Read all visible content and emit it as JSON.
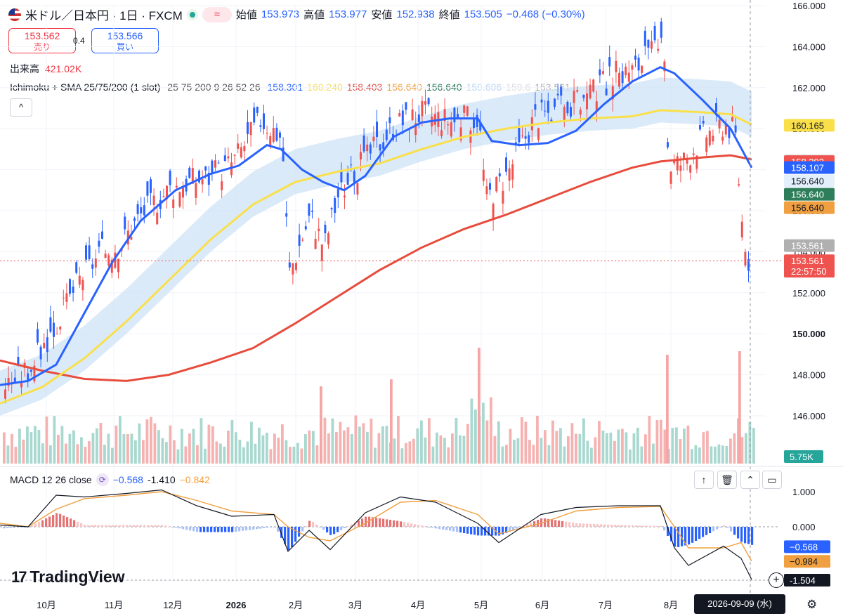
{
  "header": {
    "title": "米ドル／日本円 · 1日 · FXCM",
    "open_label": "始値",
    "open": "153.973",
    "high_label": "高値",
    "high": "153.977",
    "low_label": "安値",
    "low": "152.938",
    "close_label": "終値",
    "close": "153.505",
    "change": "−0.468 (−0.30%)",
    "wave_icon": "≈"
  },
  "trade": {
    "sell_price": "153.562",
    "sell_label": "売り",
    "spread": "0.4",
    "buy_price": "153.566",
    "buy_label": "買い"
  },
  "volume": {
    "label": "出来高",
    "value": "421.02K"
  },
  "indicator": {
    "name": "Ichimoku + SMA 25/75/200 (1 slot)",
    "params": "25 75 200 9 26 52 26",
    "values": [
      {
        "v": "158.301",
        "color": "#2962ff"
      },
      {
        "v": "160.240",
        "color": "#f5dd6a"
      },
      {
        "v": "158.403",
        "color": "#e0504a"
      },
      {
        "v": "156.640",
        "color": "#f0a040"
      },
      {
        "v": "156.640",
        "color": "#2e7d5b"
      },
      {
        "v": "159.606",
        "color": "#bbd6f5"
      },
      {
        "v": "159.6",
        "color": "#dddddd"
      },
      {
        "v": "153.561",
        "color": "#b0b0b0"
      }
    ],
    "collapse_icon": "^"
  },
  "macd": {
    "label": "MACD 12 26 close",
    "v1": "−0.568",
    "v2": "-1.410",
    "v3": "−0.842"
  },
  "toolbar": {
    "up_icon": "↑",
    "trash_icon": "🗑",
    "collapse_icon": "⌃",
    "maximize_icon": "▭"
  },
  "brand": {
    "logo_text": "TradingView",
    "mark": "17"
  },
  "crosshair_date": "2026-09-09 (水)",
  "colors": {
    "bull": "#ef5350",
    "bear": "#2962ff",
    "sma25": "#2962ff",
    "sma75": "#f9e04b",
    "sma200": "#e74c3c",
    "cloud": "#cfe3f7"
  },
  "chart_data": {
    "type": "line",
    "price_axis": [
      "166.000",
      "164.000",
      "162.000",
      "160.000",
      "158.000",
      "156.000",
      "154.000",
      "152.000",
      "150.000",
      "148.000",
      "146.000"
    ],
    "time_axis": [
      "10月",
      "11月",
      "12月",
      "2026",
      "2月",
      "3月",
      "4月",
      "5月",
      "6月",
      "7月",
      "8月"
    ],
    "ylim": [
      145.0,
      166.0
    ],
    "price_labels": [
      {
        "text": "160.165",
        "bg": "#f9e04b",
        "fg": "#131722",
        "y": 160.165
      },
      {
        "text": "158.437",
        "bg": "#e0e0e0",
        "fg": "#131722",
        "y": 158.437
      },
      {
        "text": "158.392",
        "bg": "#ef5350",
        "fg": "#ffffff",
        "y": 158.392
      },
      {
        "text": "158.107",
        "bg": "#2962ff",
        "fg": "#ffffff",
        "y": 158.107
      },
      {
        "text": "156.640",
        "bg": "#e3f0fc",
        "fg": "#131722",
        "y": 157.45
      },
      {
        "text": "156.640",
        "bg": "#2e7d5b",
        "fg": "#ffffff",
        "y": 156.8
      },
      {
        "text": "156.640",
        "bg": "#f0a040",
        "fg": "#131722",
        "y": 156.15
      },
      {
        "text": "153.561",
        "bg": "#b0b0b0",
        "fg": "#ffffff",
        "y": 154.3
      },
      {
        "text": "153.561",
        "bg": "#ef5350",
        "fg": "#ffffff",
        "y": 153.56
      },
      {
        "text": "22:57:50",
        "bg": "#ef5350",
        "fg": "#ffffff",
        "y": 153.05
      }
    ],
    "volume_label": "5.75K",
    "macd_axis": [
      "1.000",
      "0.000"
    ],
    "macd_labels": [
      {
        "text": "−0.568",
        "bg": "#2962ff",
        "fg": "#ffffff",
        "y": -0.568
      },
      {
        "text": "−0.984",
        "bg": "#f0a040",
        "fg": "#131722",
        "y": -0.984
      },
      {
        "text": "-1.504",
        "bg": "#131722",
        "fg": "#ffffff",
        "y": -1.504
      }
    ],
    "sma200": [
      [
        0,
        148.7
      ],
      [
        60,
        148.2
      ],
      [
        120,
        147.8
      ],
      [
        180,
        147.7
      ],
      [
        240,
        148.0
      ],
      [
        300,
        148.6
      ],
      [
        360,
        149.3
      ],
      [
        420,
        150.5
      ],
      [
        480,
        151.8
      ],
      [
        540,
        153.1
      ],
      [
        600,
        154.2
      ],
      [
        660,
        155.1
      ],
      [
        720,
        155.8
      ],
      [
        780,
        156.6
      ],
      [
        840,
        157.4
      ],
      [
        900,
        158.1
      ],
      [
        940,
        158.4
      ],
      [
        1000,
        158.6
      ],
      [
        1040,
        158.7
      ],
      [
        1070,
        158.5
      ]
    ],
    "sma75": [
      [
        0,
        146.6
      ],
      [
        60,
        147.4
      ],
      [
        120,
        148.8
      ],
      [
        180,
        150.6
      ],
      [
        240,
        152.6
      ],
      [
        300,
        154.6
      ],
      [
        360,
        156.3
      ],
      [
        420,
        157.4
      ],
      [
        480,
        157.9
      ],
      [
        540,
        158.3
      ],
      [
        600,
        159.0
      ],
      [
        660,
        159.6
      ],
      [
        720,
        160.0
      ],
      [
        780,
        160.3
      ],
      [
        840,
        160.5
      ],
      [
        900,
        160.6
      ],
      [
        940,
        160.9
      ],
      [
        1000,
        160.8
      ],
      [
        1040,
        160.7
      ],
      [
        1070,
        160.2
      ]
    ],
    "sma25": [
      [
        0,
        147.5
      ],
      [
        40,
        147.7
      ],
      [
        80,
        148.5
      ],
      [
        120,
        151.0
      ],
      [
        160,
        153.5
      ],
      [
        200,
        155.5
      ],
      [
        250,
        157.0
      ],
      [
        300,
        157.8
      ],
      [
        340,
        158.2
      ],
      [
        380,
        159.2
      ],
      [
        400,
        159.0
      ],
      [
        430,
        158.0
      ],
      [
        460,
        157.4
      ],
      [
        490,
        157.0
      ],
      [
        520,
        157.7
      ],
      [
        560,
        159.6
      ],
      [
        600,
        160.3
      ],
      [
        640,
        160.5
      ],
      [
        680,
        160.5
      ],
      [
        700,
        159.4
      ],
      [
        740,
        159.2
      ],
      [
        780,
        159.3
      ],
      [
        820,
        159.9
      ],
      [
        860,
        161.2
      ],
      [
        900,
        162.3
      ],
      [
        940,
        163.0
      ],
      [
        960,
        162.7
      ],
      [
        1000,
        161.4
      ],
      [
        1040,
        160.0
      ],
      [
        1070,
        158.1
      ]
    ],
    "close_path": [
      [
        5,
        147.5
      ],
      [
        40,
        148.3
      ],
      [
        80,
        150.5
      ],
      [
        110,
        152.6
      ],
      [
        140,
        153.9
      ],
      [
        170,
        154.4
      ],
      [
        200,
        155.9
      ],
      [
        240,
        157.1
      ],
      [
        270,
        157.5
      ],
      [
        300,
        157.7
      ],
      [
        330,
        158.4
      ],
      [
        370,
        160.5
      ],
      [
        400,
        159.6
      ],
      [
        410,
        153.0
      ],
      [
        440,
        155.8
      ],
      [
        460,
        154.3
      ],
      [
        480,
        156.8
      ],
      [
        520,
        158.6
      ],
      [
        560,
        160.2
      ],
      [
        600,
        160.8
      ],
      [
        640,
        160.4
      ],
      [
        680,
        160.6
      ],
      [
        690,
        156.6
      ],
      [
        720,
        157.8
      ],
      [
        760,
        160.6
      ],
      [
        800,
        161.0
      ],
      [
        840,
        161.6
      ],
      [
        870,
        162.6
      ],
      [
        900,
        162.9
      ],
      [
        930,
        163.8
      ],
      [
        945,
        163.7
      ],
      [
        950,
        158.2
      ],
      [
        970,
        158.4
      ],
      [
        1000,
        159.7
      ],
      [
        1030,
        160.3
      ],
      [
        1045,
        159.9
      ],
      [
        1055,
        155.4
      ],
      [
        1065,
        153.5
      ]
    ],
    "macd_line": [
      [
        0,
        0.05
      ],
      [
        40,
        0.0
      ],
      [
        80,
        0.9
      ],
      [
        120,
        0.85
      ],
      [
        180,
        0.95
      ],
      [
        230,
        1.05
      ],
      [
        280,
        0.6
      ],
      [
        330,
        0.3
      ],
      [
        390,
        0.35
      ],
      [
        410,
        -0.7
      ],
      [
        440,
        -0.1
      ],
      [
        470,
        -0.65
      ],
      [
        520,
        0.4
      ],
      [
        570,
        0.85
      ],
      [
        620,
        0.7
      ],
      [
        680,
        0.1
      ],
      [
        710,
        -0.45
      ],
      [
        770,
        0.35
      ],
      [
        820,
        0.55
      ],
      [
        880,
        0.6
      ],
      [
        940,
        0.6
      ],
      [
        960,
        -0.6
      ],
      [
        980,
        -1.1
      ],
      [
        1030,
        -0.55
      ],
      [
        1055,
        -0.9
      ],
      [
        1070,
        -1.5
      ]
    ],
    "signal_line": [
      [
        0,
        0.1
      ],
      [
        40,
        0.0
      ],
      [
        80,
        0.5
      ],
      [
        120,
        0.8
      ],
      [
        180,
        0.9
      ],
      [
        230,
        1.0
      ],
      [
        280,
        0.75
      ],
      [
        330,
        0.45
      ],
      [
        390,
        0.35
      ],
      [
        410,
        0.0
      ],
      [
        440,
        -0.3
      ],
      [
        470,
        -0.4
      ],
      [
        520,
        0.1
      ],
      [
        570,
        0.7
      ],
      [
        620,
        0.75
      ],
      [
        680,
        0.35
      ],
      [
        710,
        -0.2
      ],
      [
        770,
        0.1
      ],
      [
        820,
        0.45
      ],
      [
        880,
        0.55
      ],
      [
        940,
        0.58
      ],
      [
        960,
        0.0
      ],
      [
        980,
        -0.6
      ],
      [
        1030,
        -0.6
      ],
      [
        1055,
        -0.45
      ],
      [
        1070,
        -0.98
      ]
    ]
  }
}
